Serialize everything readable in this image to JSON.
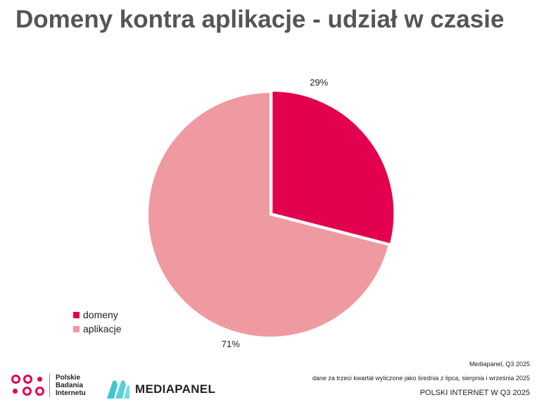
{
  "title": "Domeny kontra aplikacje - udział w czasie",
  "chart_data": {
    "type": "pie",
    "title": "Domeny kontra aplikacje - udział w czasie",
    "slices": [
      {
        "name": "domeny",
        "value": 29,
        "label": "29%",
        "color": "#E2004F"
      },
      {
        "name": "aplikacje",
        "value": 71,
        "label": "71%",
        "color": "#EF9AA0"
      }
    ],
    "legend_position": "bottom-left"
  },
  "legend": [
    {
      "label": "domeny",
      "color": "#E2004F"
    },
    {
      "label": "aplikacje",
      "color": "#EF9AA0"
    }
  ],
  "source": {
    "line1": "Mediapanel, Q3 2025",
    "line2": "dane za trzeci kwartał wyliczone jako średnia z lipca, sierpnia i września 2025"
  },
  "footer": "POLSKI INTERNET W Q3 2025",
  "logos": {
    "pbi_lines": [
      "Polskie",
      "Badania",
      "Internetu"
    ],
    "mediapanel": "MEDIAPANEL",
    "pbi_color": "#E2004F",
    "mediapanel_color": "#3CC8D2"
  }
}
